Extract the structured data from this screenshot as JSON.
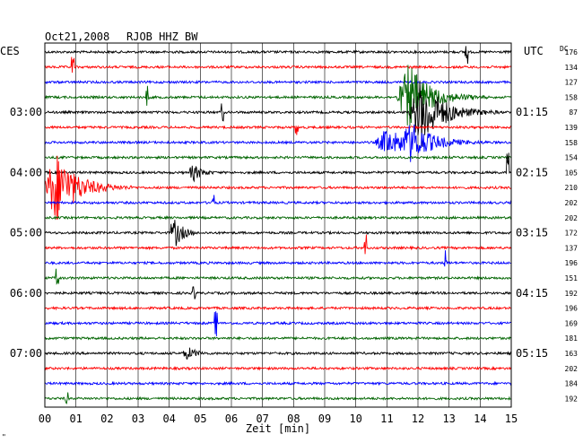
{
  "header": {
    "date": "Oct21,2008",
    "station": "RJOB HHZ BW",
    "left_zone": "CES",
    "right_zone": "UTC",
    "dc_label": "DC"
  },
  "footer": {
    "xlabel": "Zeit [min]",
    "corner_mark": "\""
  },
  "chart_data": {
    "type": "line",
    "title": "Oct21,2008   RJOB HHZ BW",
    "xlabel": "Zeit [min]",
    "xlim": [
      0,
      15
    ],
    "x_ticks": [
      "00",
      "01",
      "02",
      "03",
      "04",
      "05",
      "06",
      "07",
      "08",
      "09",
      "10",
      "11",
      "12",
      "13",
      "14",
      "15"
    ],
    "grid": true,
    "trace_colors": [
      "#000000",
      "#ff0000",
      "#0000ff",
      "#006400"
    ],
    "left_time_labels": [
      {
        "trace": 4,
        "label": "03:00"
      },
      {
        "trace": 8,
        "label": "04:00"
      },
      {
        "trace": 12,
        "label": "05:00"
      },
      {
        "trace": 16,
        "label": "06:00"
      },
      {
        "trace": 20,
        "label": "07:00"
      }
    ],
    "right_time_labels": [
      {
        "trace": 4,
        "label": "01:15"
      },
      {
        "trace": 8,
        "label": "02:15"
      },
      {
        "trace": 12,
        "label": "03:15"
      },
      {
        "trace": 16,
        "label": "04:15"
      },
      {
        "trace": 20,
        "label": "05:15"
      }
    ],
    "dc_offsets": [
      176,
      134,
      127,
      158,
      87,
      139,
      158,
      154,
      105,
      210,
      202,
      202,
      172,
      137,
      196,
      151,
      192,
      196,
      169,
      181,
      163,
      202,
      184,
      192
    ],
    "events": [
      {
        "trace": 0,
        "t": 13.55,
        "amp": 0.8,
        "kind": "spike"
      },
      {
        "trace": 1,
        "t": 0.9,
        "amp": 0.7,
        "kind": "spike"
      },
      {
        "trace": 3,
        "t": 3.3,
        "amp": 0.8,
        "kind": "spike"
      },
      {
        "trace": 3,
        "t": 11.7,
        "amp": 2.2,
        "kind": "quake"
      },
      {
        "trace": 4,
        "t": 5.7,
        "amp": 0.6,
        "kind": "spike"
      },
      {
        "trace": 4,
        "t": 12.1,
        "amp": 2.4,
        "kind": "quake"
      },
      {
        "trace": 5,
        "t": 8.1,
        "amp": 0.5,
        "kind": "spike"
      },
      {
        "trace": 6,
        "t": 11.0,
        "amp": 0.9,
        "kind": "quake"
      },
      {
        "trace": 6,
        "t": 11.8,
        "amp": 1.1,
        "kind": "quake"
      },
      {
        "trace": 8,
        "t": 4.8,
        "amp": 0.5,
        "kind": "burst"
      },
      {
        "trace": 8,
        "t": 14.9,
        "amp": 1.4,
        "kind": "spike"
      },
      {
        "trace": 9,
        "t": 0.35,
        "amp": 2.4,
        "kind": "quake"
      },
      {
        "trace": 10,
        "t": 5.4,
        "amp": 0.5,
        "kind": "spike"
      },
      {
        "trace": 12,
        "t": 4.2,
        "amp": 0.9,
        "kind": "burst"
      },
      {
        "trace": 13,
        "t": 10.3,
        "amp": 0.8,
        "kind": "spike"
      },
      {
        "trace": 14,
        "t": 12.9,
        "amp": 0.8,
        "kind": "spike"
      },
      {
        "trace": 15,
        "t": 0.4,
        "amp": 0.6,
        "kind": "spike"
      },
      {
        "trace": 16,
        "t": 4.8,
        "amp": 0.4,
        "kind": "spike"
      },
      {
        "trace": 18,
        "t": 5.5,
        "amp": 0.8,
        "kind": "spike"
      },
      {
        "trace": 20,
        "t": 4.6,
        "amp": 0.4,
        "kind": "burst"
      },
      {
        "trace": 23,
        "t": 0.7,
        "amp": 0.4,
        "kind": "spike"
      }
    ]
  }
}
